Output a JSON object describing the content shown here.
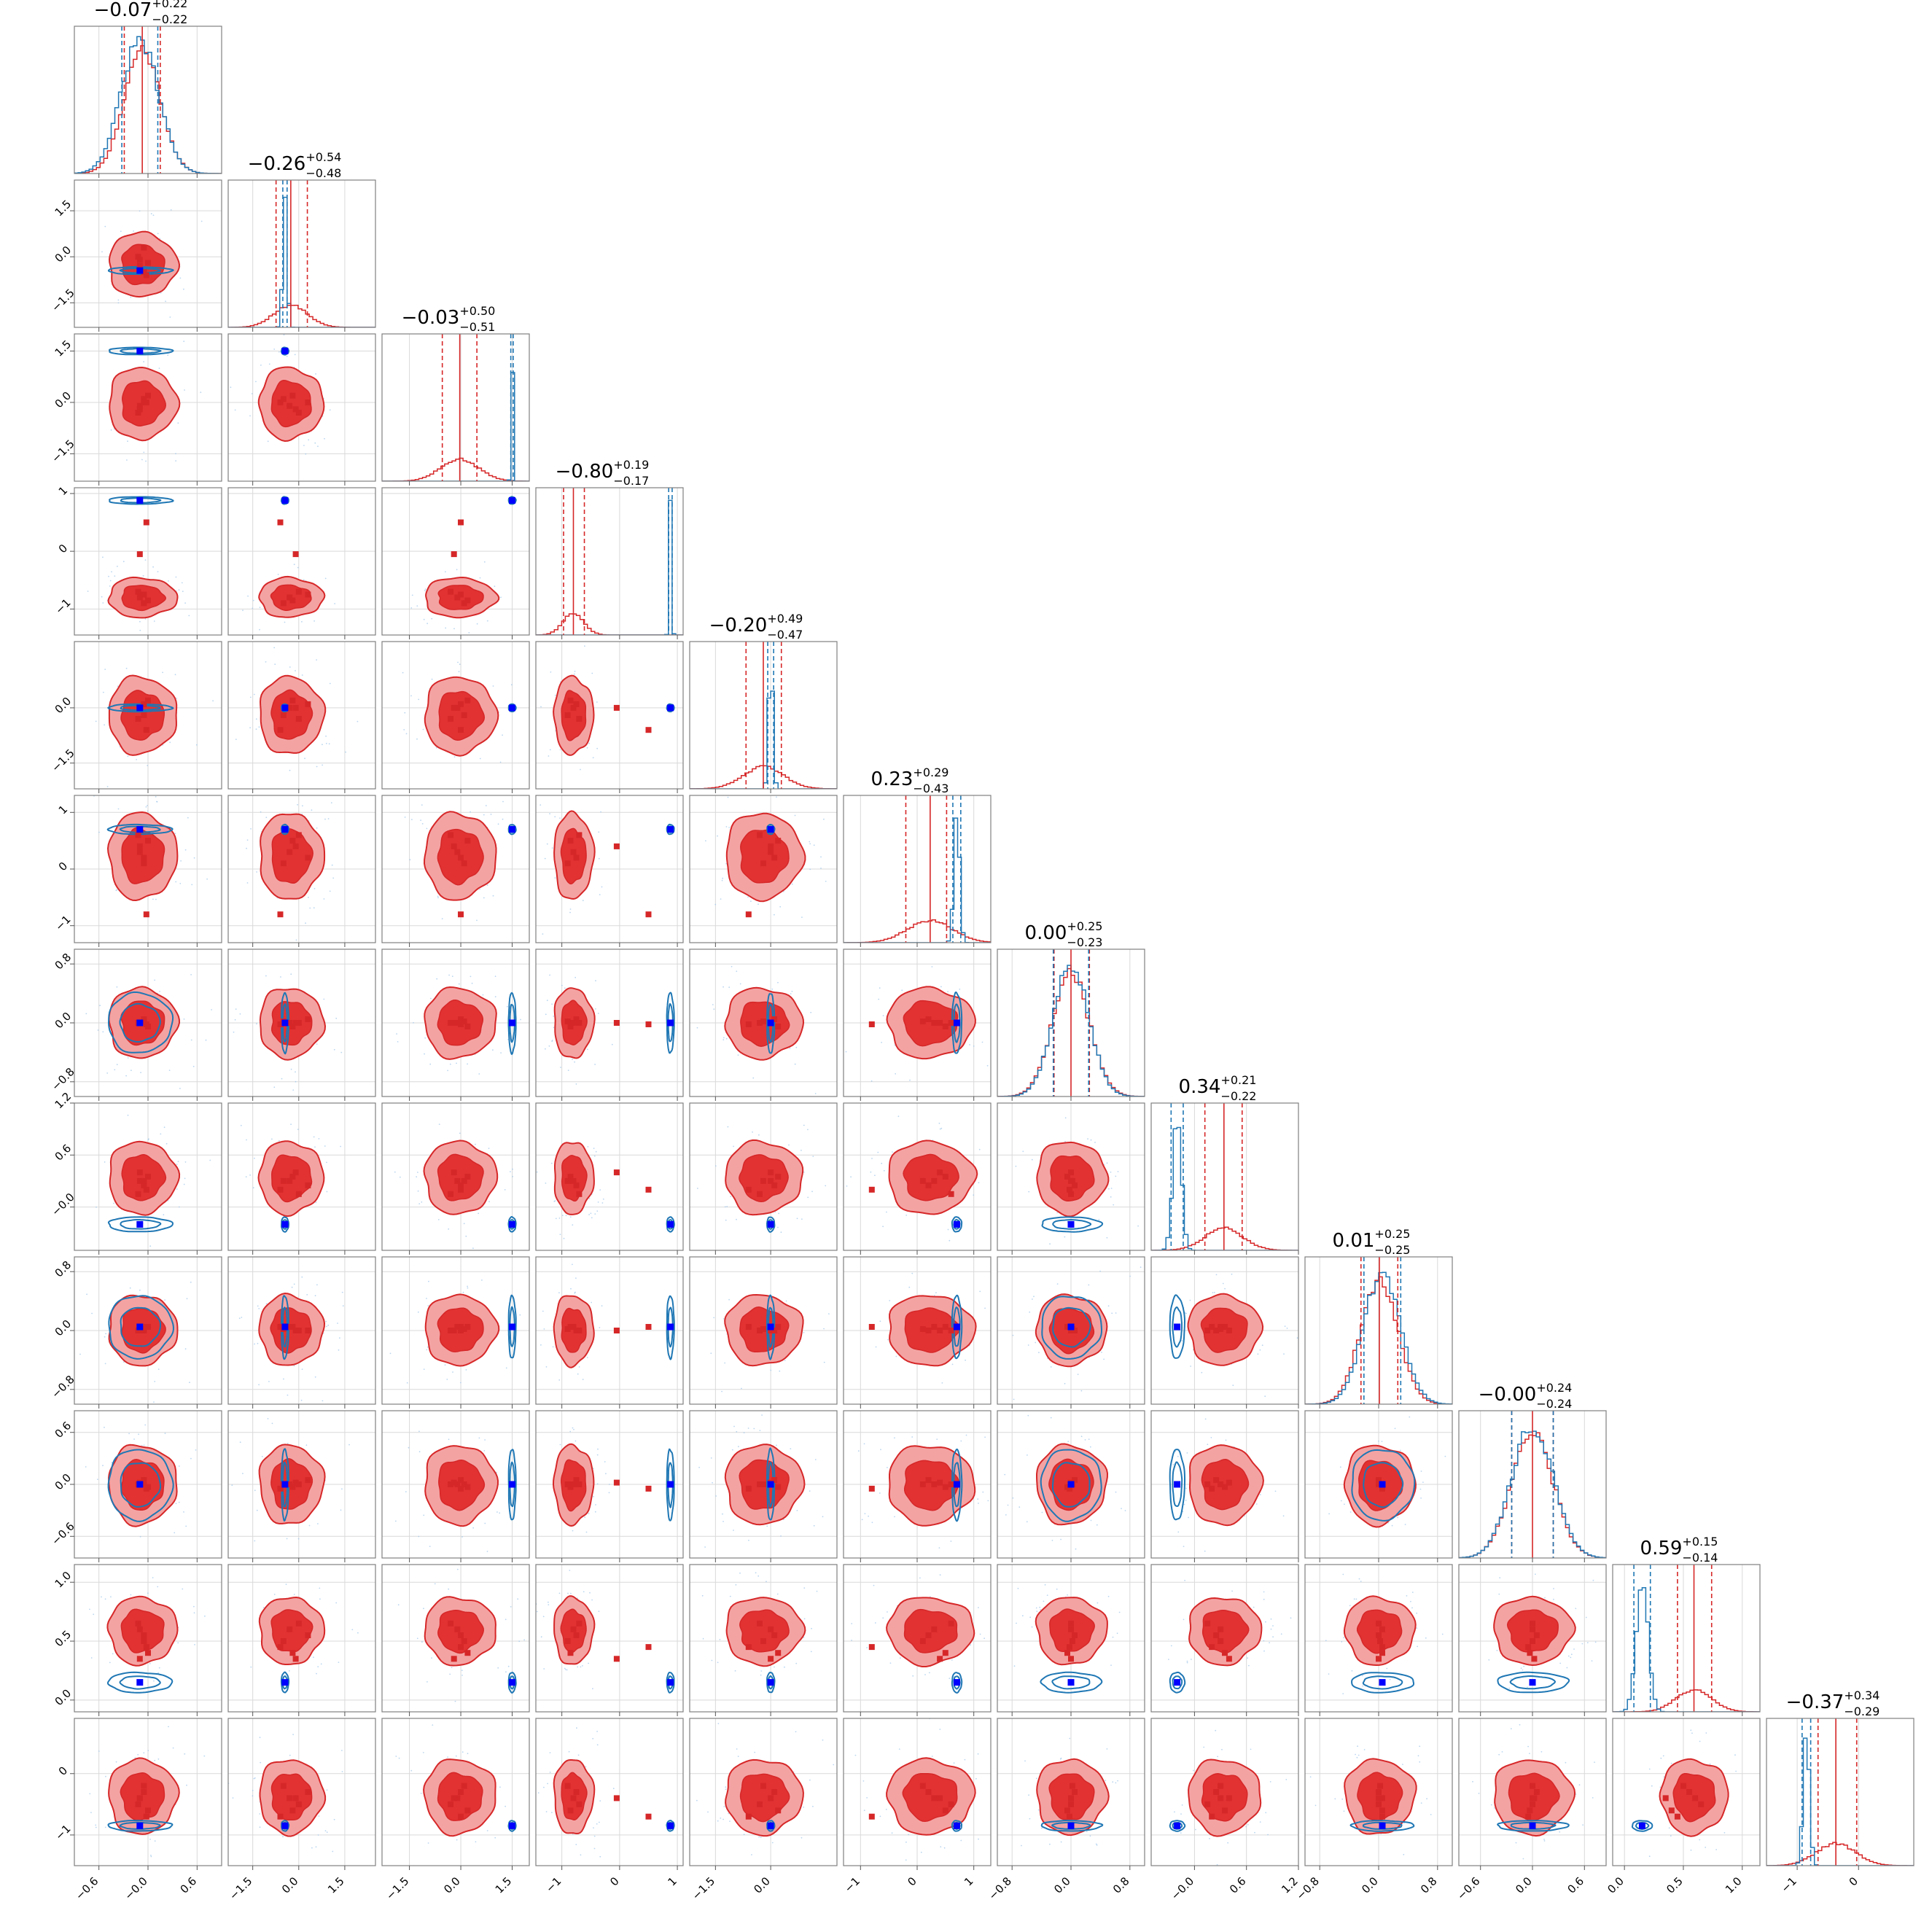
{
  "chart_data": {
    "type": "corner",
    "grid": true,
    "colors": {
      "red": "#d62728",
      "red_fill_outer": "#f4a3a3",
      "red_fill_inner": "#e23232",
      "blue": "#1f77b4",
      "blue_marker": "#0000ff",
      "axis": "#808080",
      "grid": "#d9d9d9"
    },
    "parameters": [
      {
        "title": {
          "value": "−0.07",
          "plus": "+0.22",
          "minus": "−0.22"
        },
        "range": [
          -0.9,
          0.9
        ],
        "ticks": [
          -0.6,
          0.0,
          0.6
        ],
        "tick_labels": [
          "−0.6",
          "−0.0",
          "0.6"
        ],
        "red": {
          "median": -0.07,
          "lo": -0.29,
          "hi": 0.15,
          "sigma": 0.22
        },
        "blue": {
          "mean": -0.1,
          "sigma": 0.23,
          "lo": -0.32,
          "hi": 0.12
        },
        "markers_red": [
          -0.1,
          -0.05,
          0.0,
          -0.12,
          -0.05,
          -0.02,
          -0.1
        ],
        "marker_blue": -0.1
      },
      {
        "title": {
          "value": "−0.26",
          "plus": "+0.54",
          "minus": "−0.48"
        },
        "range": [
          -2.3,
          2.5
        ],
        "ticks": [
          -1.5,
          0.0,
          1.5
        ],
        "tick_labels": [
          "−1.5",
          "0.0",
          "1.5"
        ],
        "red": {
          "median": -0.26,
          "lo": -0.74,
          "hi": 0.28,
          "sigma": 0.55
        },
        "blue": {
          "mean": -0.45,
          "sigma": 0.07,
          "lo": -0.52,
          "hi": -0.38
        },
        "markers_red": [
          -0.3,
          0.3,
          -0.2,
          0.0,
          -0.5,
          -0.6,
          -0.1
        ],
        "marker_blue": -0.45
      },
      {
        "title": {
          "value": "−0.03",
          "plus": "+0.50",
          "minus": "−0.51"
        },
        "range": [
          -2.3,
          2.0
        ],
        "ticks": [
          -1.5,
          0.0,
          1.5
        ],
        "tick_labels": [
          "−1.5",
          "0.0",
          "1.5"
        ],
        "red": {
          "median": -0.03,
          "lo": -0.54,
          "hi": 0.47,
          "sigma": 0.55
        },
        "blue": {
          "mean": 1.5,
          "sigma": 0.03,
          "lo": 1.46,
          "hi": 1.53
        },
        "markers_red": [
          -0.1,
          0.0,
          0.2,
          -0.3,
          0.1,
          0.0,
          -0.2
        ],
        "marker_blue": 1.5
      },
      {
        "title": {
          "value": "−0.80",
          "plus": "+0.19",
          "minus": "−0.17"
        },
        "range": [
          -1.45,
          1.1
        ],
        "ticks": [
          -1.0,
          0.0,
          1.0
        ],
        "tick_labels": [
          "−1",
          "0",
          "1"
        ],
        "red": {
          "median": -0.8,
          "lo": -0.97,
          "hi": -0.61,
          "sigma": 0.18
        },
        "blue": {
          "mean": 0.88,
          "sigma": 0.02,
          "lo": 0.85,
          "hi": 0.91
        },
        "markers_red": [
          -0.8,
          -0.75,
          -0.85,
          -0.7,
          -0.9,
          0.5,
          -0.05
        ],
        "marker_blue": 0.88
      },
      {
        "title": {
          "value": "−0.20",
          "plus": "+0.49",
          "minus": "−0.47"
        },
        "range": [
          -2.2,
          1.8
        ],
        "ticks": [
          -1.5,
          0.0
        ],
        "tick_labels": [
          "−1.5",
          "0.0"
        ],
        "red": {
          "median": -0.2,
          "lo": -0.67,
          "hi": 0.29,
          "sigma": 0.55
        },
        "blue": {
          "mean": 0.0,
          "sigma": 0.06,
          "lo": -0.08,
          "hi": 0.08
        },
        "markers_red": [
          0.0,
          0.1,
          0.2,
          -0.3,
          -0.2,
          -0.6,
          0.0
        ],
        "marker_blue": 0.0
      },
      {
        "title": {
          "value": "0.23",
          "plus": "+0.29",
          "minus": "−0.43"
        },
        "range": [
          -1.3,
          1.3
        ],
        "ticks": [
          -1.0,
          0.0,
          1.0
        ],
        "tick_labels": [
          "−1",
          "0",
          "1"
        ],
        "red": {
          "median": 0.23,
          "lo": -0.2,
          "hi": 0.52,
          "sigma": 0.4
        },
        "blue": {
          "mean": 0.7,
          "sigma": 0.05,
          "lo": 0.63,
          "hi": 0.77
        },
        "markers_red": [
          0.3,
          0.2,
          0.5,
          0.6,
          0.1,
          -0.8,
          0.4
        ],
        "marker_blue": 0.7
      },
      {
        "title": {
          "value": "0.00",
          "plus": "+0.25",
          "minus": "−0.23"
        },
        "range": [
          -1.0,
          1.0
        ],
        "ticks": [
          -0.8,
          0.0,
          0.8
        ],
        "tick_labels": [
          "−0.8",
          "0.0",
          "0.8"
        ],
        "red": {
          "median": 0.0,
          "lo": -0.23,
          "hi": 0.25,
          "sigma": 0.25
        },
        "blue": {
          "mean": 0.0,
          "sigma": 0.24,
          "lo": -0.24,
          "hi": 0.24
        },
        "markers_red": [
          0.0,
          0.05,
          -0.05,
          0.0,
          0.02,
          -0.02,
          0.0
        ],
        "marker_blue": 0.0
      },
      {
        "title": {
          "value": "0.34",
          "plus": "+0.21",
          "minus": "−0.22"
        },
        "range": [
          -0.5,
          1.2
        ],
        "ticks": [
          -0.0,
          0.6,
          1.2
        ],
        "tick_labels": [
          "−0.0",
          "0.6",
          "1.2"
        ],
        "red": {
          "median": 0.34,
          "lo": 0.12,
          "hi": 0.55,
          "sigma": 0.22
        },
        "blue": {
          "mean": -0.2,
          "sigma": 0.05,
          "lo": -0.27,
          "hi": -0.13
        },
        "markers_red": [
          0.3,
          0.25,
          0.35,
          0.15,
          0.3,
          0.2,
          0.4
        ],
        "marker_blue": -0.2
      },
      {
        "title": {
          "value": "0.01",
          "plus": "+0.25",
          "minus": "−0.25"
        },
        "range": [
          -1.0,
          1.0
        ],
        "ticks": [
          -0.8,
          0.0,
          0.8
        ],
        "tick_labels": [
          "−0.8",
          "0.0",
          "0.8"
        ],
        "red": {
          "median": 0.01,
          "lo": -0.24,
          "hi": 0.26,
          "sigma": 0.25
        },
        "blue": {
          "mean": 0.05,
          "sigma": 0.25,
          "lo": -0.2,
          "hi": 0.3
        },
        "markers_red": [
          0.05,
          0.0,
          0.05,
          0.0,
          0.02,
          0.05,
          0.0
        ],
        "marker_blue": 0.05
      },
      {
        "title": {
          "value": "−0.00",
          "plus": "+0.24",
          "minus": "−0.24"
        },
        "range": [
          -0.85,
          0.85
        ],
        "ticks": [
          -0.6,
          0.0,
          0.6
        ],
        "tick_labels": [
          "−0.6",
          "0.0",
          "0.6"
        ],
        "red": {
          "median": 0.0,
          "lo": -0.24,
          "hi": 0.24,
          "sigma": 0.24
        },
        "blue": {
          "mean": 0.0,
          "sigma": 0.24,
          "lo": -0.24,
          "hi": 0.24
        },
        "markers_red": [
          0.0,
          0.05,
          -0.03,
          0.0,
          0.0,
          -0.05,
          0.02
        ],
        "marker_blue": 0.0
      },
      {
        "title": {
          "value": "0.59",
          "plus": "+0.15",
          "minus": "−0.14"
        },
        "range": [
          -0.1,
          1.15
        ],
        "ticks": [
          0.0,
          0.5,
          1.0
        ],
        "tick_labels": [
          "0.0",
          "0.5",
          "1.0"
        ],
        "red": {
          "median": 0.59,
          "lo": 0.45,
          "hi": 0.74,
          "sigma": 0.15
        },
        "blue": {
          "mean": 0.15,
          "sigma": 0.05,
          "lo": 0.08,
          "hi": 0.22
        },
        "markers_red": [
          0.6,
          0.55,
          0.4,
          0.65,
          0.5,
          0.45,
          0.35
        ],
        "marker_blue": 0.15
      },
      {
        "title": {
          "value": "−0.37",
          "plus": "+0.34",
          "minus": "−0.29"
        },
        "range": [
          -1.5,
          0.9
        ],
        "ticks": [
          -1.0,
          0.0
        ],
        "tick_labels": [
          "−1",
          "0"
        ],
        "red": {
          "median": -0.37,
          "lo": -0.66,
          "hi": -0.03,
          "sigma": 0.32
        },
        "blue": {
          "mean": -0.85,
          "sigma": 0.05,
          "lo": -0.92,
          "hi": -0.78
        },
        "markers_red": [
          -0.4,
          -0.3,
          -0.6,
          -0.5,
          -0.2,
          -0.7,
          -0.4
        ],
        "marker_blue": -0.85
      }
    ]
  }
}
